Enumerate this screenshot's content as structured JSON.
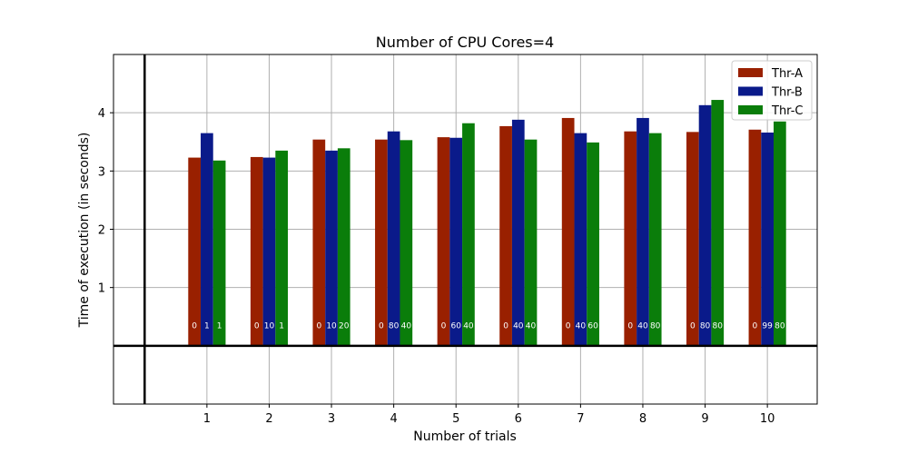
{
  "chart_data": {
    "type": "bar",
    "title": "Number of CPU Cores=4",
    "xlabel": "Number of trials",
    "ylabel": "Time of execution (in seconds)",
    "categories": [
      "1",
      "2",
      "3",
      "4",
      "5",
      "6",
      "7",
      "8",
      "9",
      "10"
    ],
    "xlim": [
      -0.5,
      10.8
    ],
    "ylim": [
      -1,
      5
    ],
    "yticks": [
      1,
      2,
      3,
      4
    ],
    "grid": true,
    "legend_position": "top-right",
    "series": [
      {
        "name": "Thr-A",
        "color": "#992000",
        "values": [
          3.23,
          3.24,
          3.54,
          3.54,
          3.58,
          3.77,
          3.91,
          3.68,
          3.67,
          3.71
        ],
        "labels": [
          "0",
          "0",
          "0",
          "0",
          "0",
          "0",
          "0",
          "0",
          "0",
          "0"
        ]
      },
      {
        "name": "Thr-B",
        "color": "#0a1a8a",
        "values": [
          3.65,
          3.23,
          3.35,
          3.68,
          3.57,
          3.88,
          3.65,
          3.91,
          4.13,
          3.66
        ],
        "labels": [
          "1",
          "10",
          "10",
          "80",
          "60",
          "40",
          "40",
          "40",
          "80",
          "99"
        ]
      },
      {
        "name": "Thr-C",
        "color": "#0a7d0a",
        "values": [
          3.18,
          3.35,
          3.39,
          3.53,
          3.82,
          3.54,
          3.49,
          3.65,
          4.22,
          3.85
        ],
        "labels": [
          "1",
          "1",
          "20",
          "40",
          "40",
          "40",
          "60",
          "80",
          "80",
          "80"
        ]
      }
    ]
  }
}
